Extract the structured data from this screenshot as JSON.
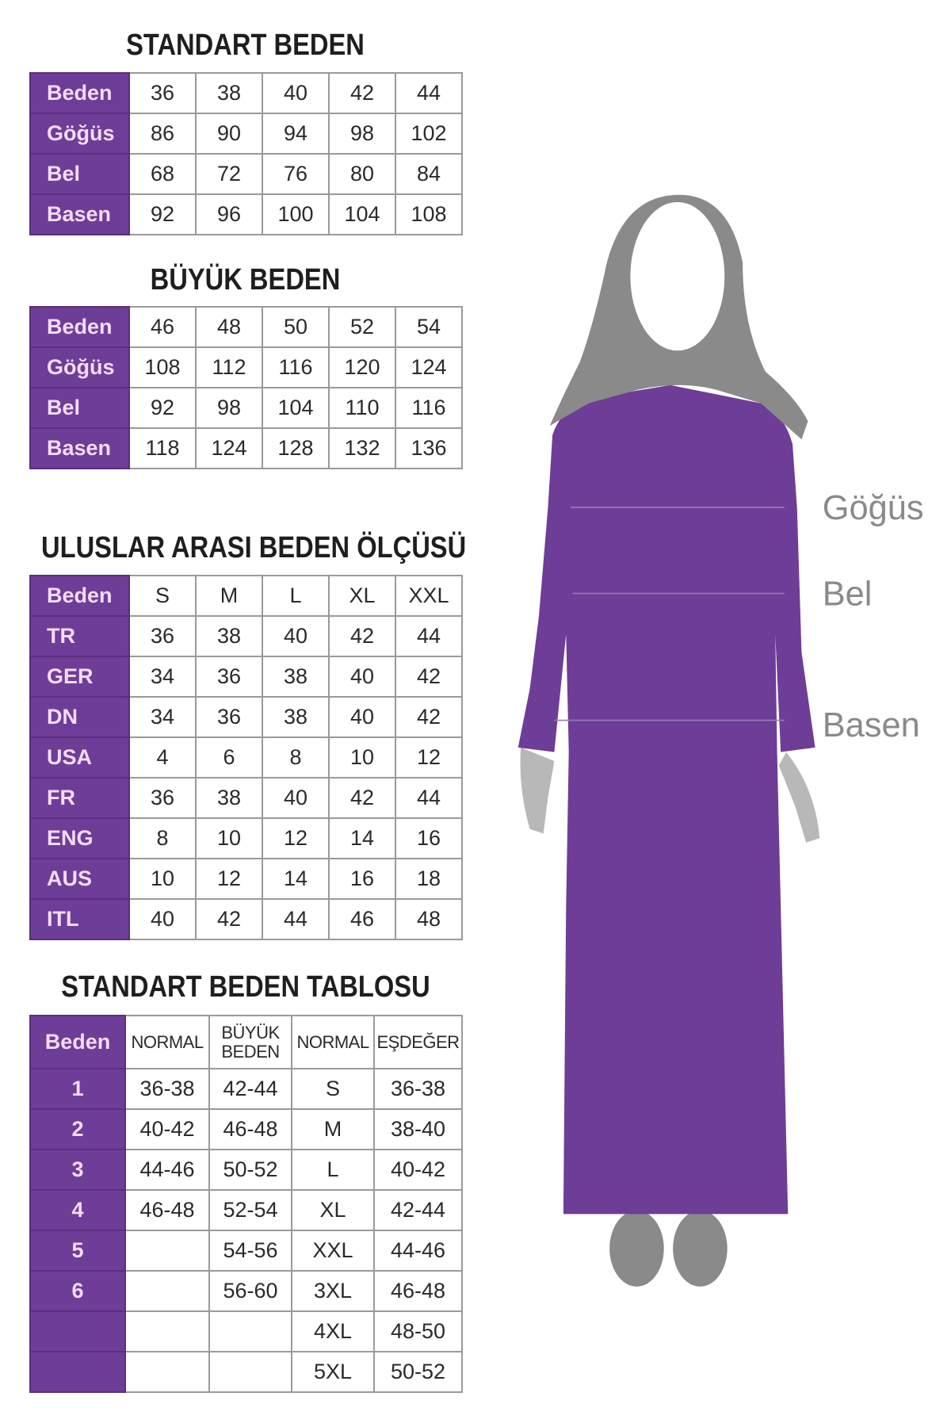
{
  "colors": {
    "accent": "#6e3d97",
    "header_text": "#f3dcf7",
    "hijab": "#8a8a8a",
    "skin": "#b8b8b8"
  },
  "standart": {
    "title": "STANDART BEDEN",
    "rows": [
      [
        "Beden",
        "36",
        "38",
        "40",
        "42",
        "44"
      ],
      [
        "Göğüs",
        "86",
        "90",
        "94",
        "98",
        "102"
      ],
      [
        "Bel",
        "68",
        "72",
        "76",
        "80",
        "84"
      ],
      [
        "Basen",
        "92",
        "96",
        "100",
        "104",
        "108"
      ]
    ]
  },
  "buyuk": {
    "title": "BÜYÜK BEDEN",
    "rows": [
      [
        "Beden",
        "46",
        "48",
        "50",
        "52",
        "54"
      ],
      [
        "Göğüs",
        "108",
        "112",
        "116",
        "120",
        "124"
      ],
      [
        "Bel",
        "92",
        "98",
        "104",
        "110",
        "116"
      ],
      [
        "Basen",
        "118",
        "124",
        "128",
        "132",
        "136"
      ]
    ]
  },
  "uluslar": {
    "title": "ULUSLAR ARASI BEDEN ÖLÇÜSÜ",
    "rows": [
      [
        "Beden",
        "S",
        "M",
        "L",
        "XL",
        "XXL"
      ],
      [
        "TR",
        "36",
        "38",
        "40",
        "42",
        "44"
      ],
      [
        "GER",
        "34",
        "36",
        "38",
        "40",
        "42"
      ],
      [
        "DN",
        "34",
        "36",
        "38",
        "40",
        "42"
      ],
      [
        "USA",
        "4",
        "6",
        "8",
        "10",
        "12"
      ],
      [
        "FR",
        "36",
        "38",
        "40",
        "42",
        "44"
      ],
      [
        "ENG",
        "8",
        "10",
        "12",
        "14",
        "16"
      ],
      [
        "AUS",
        "10",
        "12",
        "14",
        "16",
        "18"
      ],
      [
        "ITL",
        "40",
        "42",
        "44",
        "46",
        "48"
      ]
    ]
  },
  "tablosu": {
    "title": "STANDART BEDEN TABLOSU",
    "header": [
      "Beden",
      "NORMAL",
      "BÜYÜK BEDEN",
      "NORMAL",
      "EŞDEĞER"
    ],
    "rows": [
      [
        "1",
        "36-38",
        "42-44",
        "S",
        "36-38"
      ],
      [
        "2",
        "40-42",
        "46-48",
        "M",
        "38-40"
      ],
      [
        "3",
        "44-46",
        "50-52",
        "L",
        "40-42"
      ],
      [
        "4",
        "46-48",
        "52-54",
        "XL",
        "42-44"
      ],
      [
        "5",
        "",
        "54-56",
        "XXL",
        "44-46"
      ],
      [
        "6",
        "",
        "56-60",
        "3XL",
        "46-48"
      ],
      [
        "",
        "",
        "",
        "4XL",
        "48-50"
      ],
      [
        "",
        "",
        "",
        "5XL",
        "50-52"
      ]
    ]
  },
  "figure": {
    "labels": [
      "Göğüs",
      "Bel",
      "Basen"
    ]
  }
}
